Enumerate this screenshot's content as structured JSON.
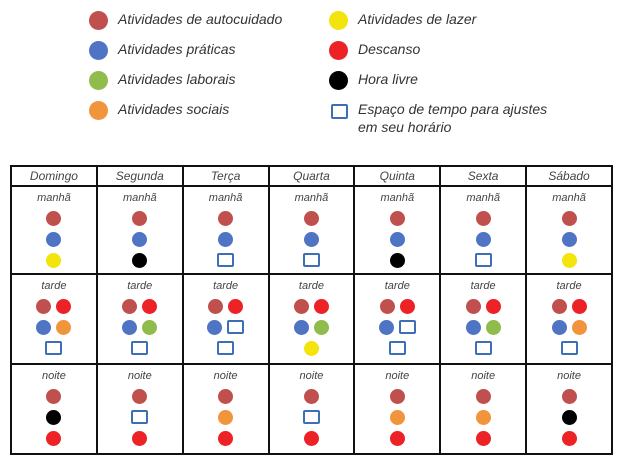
{
  "colors": {
    "autocuidado": "#c0504d",
    "praticas": "#4f74c4",
    "laborais": "#8fbc4a",
    "sociais": "#f0953b",
    "lazer": "#f2e40c",
    "descanso": "#ec2227",
    "hora_livre": "#000000",
    "ajuste": "#3d6fb6"
  },
  "legend": [
    {
      "label": "Atividades de autocuidado",
      "type": "autocuidado"
    },
    {
      "label": "Atividades práticas",
      "type": "praticas"
    },
    {
      "label": "Atividades laborais",
      "type": "laborais"
    },
    {
      "label": "Atividades sociais",
      "type": "sociais"
    },
    {
      "label": "Atividades de lazer",
      "type": "lazer"
    },
    {
      "label": "Descanso",
      "type": "descanso"
    },
    {
      "label": "Hora livre",
      "type": "hora_livre"
    },
    {
      "label": "Espaço de tempo para ajustes em seu horário",
      "type": "ajuste"
    }
  ],
  "schedule": {
    "days": [
      "Domingo",
      "Segunda",
      "Terça",
      "Quarta",
      "Quinta",
      "Sexta",
      "Sábado"
    ],
    "periods": [
      {
        "label": "manhã",
        "cells": [
          [
            [
              "autocuidado"
            ],
            [
              "praticas"
            ],
            [
              "lazer"
            ]
          ],
          [
            [
              "autocuidado"
            ],
            [
              "praticas"
            ],
            [
              "hora_livre"
            ]
          ],
          [
            [
              "autocuidado"
            ],
            [
              "praticas"
            ],
            [
              "ajuste"
            ]
          ],
          [
            [
              "autocuidado"
            ],
            [
              "praticas"
            ],
            [
              "ajuste"
            ]
          ],
          [
            [
              "autocuidado"
            ],
            [
              "praticas"
            ],
            [
              "hora_livre"
            ]
          ],
          [
            [
              "autocuidado"
            ],
            [
              "praticas"
            ],
            [
              "ajuste"
            ]
          ],
          [
            [
              "autocuidado"
            ],
            [
              "praticas"
            ],
            [
              "lazer"
            ]
          ]
        ]
      },
      {
        "label": "tarde",
        "cells": [
          [
            [
              "autocuidado",
              "descanso"
            ],
            [
              "praticas",
              "sociais"
            ],
            [
              "ajuste"
            ]
          ],
          [
            [
              "autocuidado",
              "descanso"
            ],
            [
              "praticas",
              "laborais"
            ],
            [
              "ajuste"
            ]
          ],
          [
            [
              "autocuidado",
              "descanso"
            ],
            [
              "praticas",
              "ajuste"
            ],
            [
              "ajuste"
            ]
          ],
          [
            [
              "autocuidado",
              "descanso"
            ],
            [
              "praticas",
              "laborais"
            ],
            [
              "lazer"
            ]
          ],
          [
            [
              "autocuidado",
              "descanso"
            ],
            [
              "praticas",
              "ajuste"
            ],
            [
              "ajuste"
            ]
          ],
          [
            [
              "autocuidado",
              "descanso"
            ],
            [
              "praticas",
              "laborais"
            ],
            [
              "ajuste"
            ]
          ],
          [
            [
              "autocuidado",
              "descanso"
            ],
            [
              "praticas",
              "sociais"
            ],
            [
              "ajuste"
            ]
          ]
        ]
      },
      {
        "label": "noite",
        "cells": [
          [
            [
              "autocuidado"
            ],
            [
              "hora_livre"
            ],
            [
              "descanso"
            ]
          ],
          [
            [
              "autocuidado"
            ],
            [
              "ajuste"
            ],
            [
              "descanso"
            ]
          ],
          [
            [
              "autocuidado"
            ],
            [
              "sociais"
            ],
            [
              "descanso"
            ]
          ],
          [
            [
              "autocuidado"
            ],
            [
              "ajuste"
            ],
            [
              "descanso"
            ]
          ],
          [
            [
              "autocuidado"
            ],
            [
              "sociais"
            ],
            [
              "descanso"
            ]
          ],
          [
            [
              "autocuidado"
            ],
            [
              "sociais"
            ],
            [
              "descanso"
            ]
          ],
          [
            [
              "autocuidado"
            ],
            [
              "hora_livre"
            ],
            [
              "descanso"
            ]
          ]
        ]
      }
    ]
  }
}
